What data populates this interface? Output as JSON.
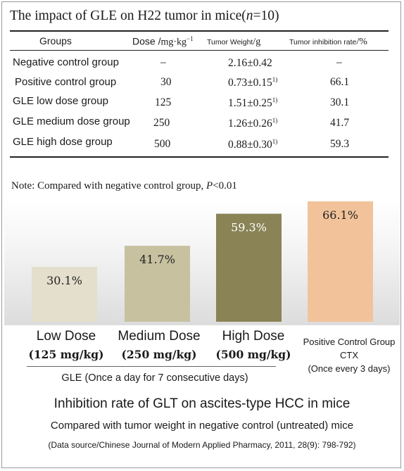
{
  "table": {
    "title": "The impact of GLE on H22 tumor in mice(",
    "title_n": "n",
    "title_eq": "=10)",
    "headers": {
      "groups": "Groups",
      "dose_a": "Dose /",
      "dose_unit": "mg·kg",
      "dose_exp": "−1",
      "weight_a": "Tumor Weight",
      "weight_unit": "/g",
      "rate_a": "Tumor inhibition rate",
      "rate_unit": "/%"
    },
    "rows": [
      {
        "group": "Negative control group",
        "dose": "–",
        "weight": "2.16±0.42",
        "sup": "",
        "rate": "–"
      },
      {
        "group": "Positive control group",
        "dose": "30",
        "weight": "0.73±0.15",
        "sup": "1)",
        "rate": "66.1"
      },
      {
        "group": "GLE low dose group",
        "dose": "125",
        "weight": "1.51±0.25",
        "sup": "1)",
        "rate": "30.1"
      },
      {
        "group": "GLE medium dose group",
        "dose": "250",
        "weight": "1.26±0.26",
        "sup": "1)",
        "rate": "41.7"
      },
      {
        "group": "GLE high dose group",
        "dose": "500",
        "weight": "0.88±0.30",
        "sup": "1)",
        "rate": "59.3"
      }
    ],
    "note_a": "Note:   Compared with negative control group, ",
    "note_p": "P",
    "note_b": "<0.01"
  },
  "chart_data": {
    "type": "bar",
    "categories": [
      "Low Dose (125 mg/kg)",
      "Medium Dose (250 mg/kg)",
      "High Dose (500 mg/kg)",
      "Positive Control Group CTX (Once every 3 days)"
    ],
    "values": [
      30.1,
      41.7,
      59.3,
      66.1
    ],
    "value_labels": [
      "30.1%",
      "41.7%",
      "59.3%",
      "66.1%"
    ],
    "colors": [
      "#e3dfcc",
      "#c7c1a0",
      "#8a8356",
      "#f2c39a"
    ],
    "label_colors": [
      "#222222",
      "#222222",
      "#ffffff",
      "#222222"
    ],
    "ylim": [
      0,
      66.1
    ],
    "cat_names": [
      "Low Dose",
      "Medium Dose",
      "High Dose"
    ],
    "cat_doses": [
      "(125 mg/kg)",
      "(250 mg/kg)",
      "(500 mg/kg)"
    ],
    "pos_lines": [
      "Positive Control Group",
      "CTX",
      "(Once every 3 days)"
    ],
    "group_label": "GLE (Once a day for 7 consecutive days)",
    "title": "Inhibition rate of GLT on ascites-type HCC in mice",
    "subtitle": "Compared with tumor weight in negative control (untreated) mice",
    "source": "(Data source/Chinese Journal of Modern Applied Pharmacy, 2011, 28(9): 798-792)"
  }
}
